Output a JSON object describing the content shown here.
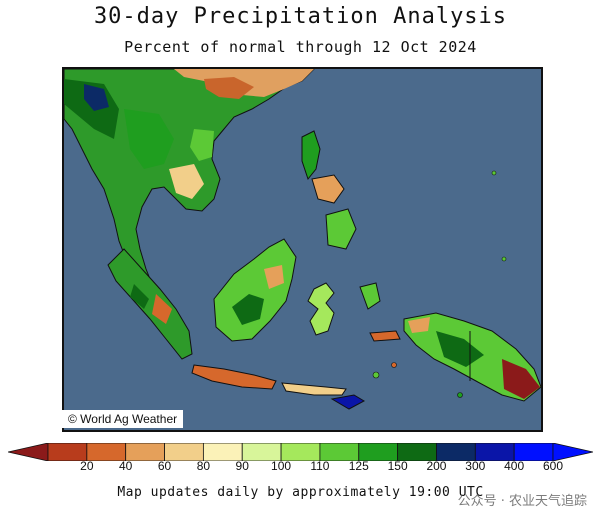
{
  "header": {
    "title": "30-day Precipitation Analysis",
    "subtitle": "Percent of normal through 12 Oct 2024"
  },
  "map": {
    "credit": "© World Ag Weather",
    "ocean_color": "#4b6a8c"
  },
  "legend": {
    "ticks": [
      "20",
      "40",
      "60",
      "80",
      "90",
      "100",
      "110",
      "125",
      "150",
      "200",
      "300",
      "400",
      "600"
    ],
    "colors": [
      "#8b1a1a",
      "#b83c1c",
      "#d6682c",
      "#e5a05a",
      "#f2cf8a",
      "#fbf2b8",
      "#d8f59a",
      "#a5e85c",
      "#5cc936",
      "#1f9e1f",
      "#0e6a14",
      "#0c2a66",
      "#0a15a8",
      "#0010ff"
    ]
  },
  "footer": {
    "note": "Map updates daily by approximately 19:00 UTC",
    "watermark": "公众号 · 农业天气追踪"
  }
}
